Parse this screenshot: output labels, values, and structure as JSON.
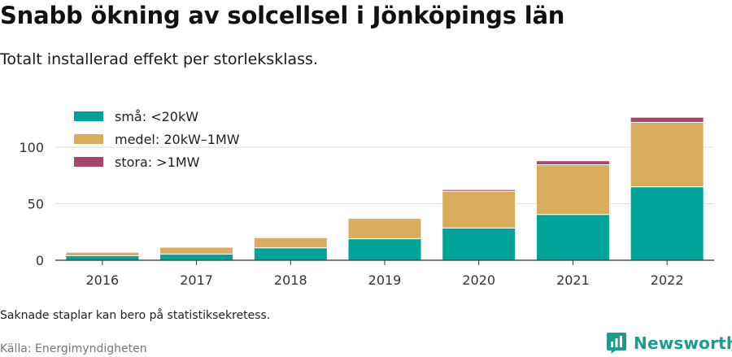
{
  "header": {
    "title": "Snabb ökning av solcellsel i Jönköpings län",
    "subtitle": "Totalt installerad effekt per storleksklass."
  },
  "footer": {
    "note": "Saknade staplar kan bero på statistiksekretess.",
    "source": "Källa: Energimyndigheten",
    "brand": "Newsworthy",
    "brand_icon": "newsworthy-logo-icon"
  },
  "chart_data": {
    "type": "bar",
    "stacked": true,
    "categories": [
      "2016",
      "2017",
      "2018",
      "2019",
      "2020",
      "2021",
      "2022"
    ],
    "series": [
      {
        "name": "små: <20kW",
        "color": "#00a398",
        "values": [
          4,
          5.5,
          11,
          19,
          28.5,
          40.5,
          65
        ]
      },
      {
        "name": "medel: 20kW–1MW",
        "color": "#d9ad5b",
        "values": [
          3,
          6,
          9,
          18,
          32.5,
          44,
          57
        ]
      },
      {
        "name": "stora: >1MW",
        "color": "#a8466c",
        "values": [
          0,
          0,
          0,
          0,
          1.5,
          3.5,
          4.5
        ]
      }
    ],
    "yticks": [
      0,
      50,
      100
    ],
    "ylim": [
      0,
      126
    ],
    "xlabel": "",
    "ylabel": "",
    "grid": true,
    "legend": "top-left"
  }
}
